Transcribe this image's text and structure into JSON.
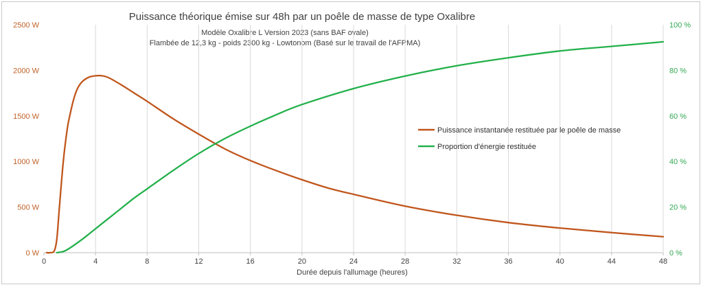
{
  "chart_data": {
    "type": "line",
    "title": "Puissance théorique émise sur 48h par un poêle de masse de type Oxalibre",
    "subtitle_lines": [
      "Modèle Oxalibre L Version 2023 (sans BAF ovale)",
      "Flambée de 12,3 kg - poids 2300 kg - Lowtonom (Basé sur le travail de l'AFPMA)"
    ],
    "xlabel": "Durée depuis l'allumage (heures)",
    "xlim": [
      0,
      48
    ],
    "x_ticks": [
      0,
      4,
      8,
      12,
      16,
      20,
      24,
      28,
      32,
      36,
      40,
      44,
      48
    ],
    "y_left": {
      "lim": [
        0,
        2500
      ],
      "ticks": [
        0,
        500,
        1000,
        1500,
        2000,
        2500
      ],
      "tick_labels": [
        "0 W",
        "500 W",
        "1000 W",
        "1500 W",
        "2000 W",
        "2500 W"
      ]
    },
    "y_right": {
      "lim": [
        0,
        100
      ],
      "ticks": [
        0,
        20,
        40,
        60,
        80,
        100
      ],
      "tick_labels": [
        "0 %",
        "20 %",
        "40 %",
        "60 %",
        "80 %",
        "100 %"
      ]
    },
    "grid": "vertical",
    "legend_position": "right",
    "series": [
      {
        "name": "Puissance instantanée restituée par le poêle de masse",
        "axis": "left",
        "color": "#c0561c",
        "x": [
          0.2,
          0.5,
          0.8,
          1.0,
          1.2,
          1.5,
          1.8,
          2.0,
          2.3,
          2.6,
          3.0,
          3.5,
          4.0,
          4.5,
          5.0,
          6.0,
          7.0,
          8.0,
          10.0,
          12.0,
          14.0,
          16.0,
          18.0,
          20.0,
          22.0,
          24.0,
          28.0,
          32.0,
          36.0,
          40.0,
          44.0,
          48.0
        ],
        "values": [
          0,
          0,
          20,
          150,
          500,
          1000,
          1350,
          1500,
          1680,
          1800,
          1880,
          1925,
          1940,
          1940,
          1920,
          1840,
          1750,
          1660,
          1470,
          1300,
          1140,
          1010,
          900,
          800,
          710,
          640,
          510,
          410,
          330,
          270,
          220,
          175
        ]
      },
      {
        "name": "Proportion d'énergie restituée",
        "axis": "right",
        "color": "#22b04a",
        "x": [
          1.0,
          1.5,
          2.0,
          3.0,
          4.0,
          5.0,
          6.0,
          7.0,
          8.0,
          10.0,
          12.0,
          14.0,
          16.0,
          18.0,
          20.0,
          24.0,
          28.0,
          32.0,
          36.0,
          40.0,
          44.0,
          48.0
        ],
        "values": [
          0,
          0.5,
          2,
          6,
          10.5,
          15,
          19.5,
          24,
          28,
          36,
          43.5,
          50,
          55.5,
          60.5,
          65,
          72,
          77.5,
          82,
          85.5,
          88.5,
          90.5,
          92.5
        ]
      }
    ]
  }
}
